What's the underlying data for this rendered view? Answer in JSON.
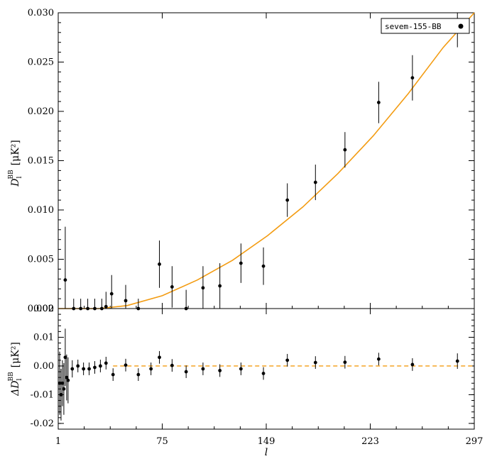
{
  "colors": {
    "model_line": "#F39C12",
    "points": "#000000",
    "background": "#FFFFFF"
  },
  "legend": {
    "label": "sevem-155-BB",
    "placement": "top-right"
  },
  "x_axis": {
    "label": "l",
    "range": [
      1,
      297
    ],
    "ticks": [
      1,
      75,
      149,
      223,
      297
    ]
  },
  "chart_data": [
    {
      "type": "scatter",
      "panel": "top",
      "ylabel_main": "D",
      "ylabel_sub": "l",
      "ylabel_sup": "BB",
      "ylabel_unit": "[μK²]",
      "ylim": [
        0.0,
        0.03
      ],
      "yticks": [
        "0.000",
        "0.005",
        "0.010",
        "0.015",
        "0.020",
        "0.025",
        "0.030"
      ],
      "series": [
        {
          "name": "sevem-155-BB",
          "x": [
            6,
            12,
            17,
            22,
            27,
            32,
            35,
            39,
            49,
            58,
            73,
            82,
            92,
            104,
            116,
            131,
            147,
            164,
            184,
            205,
            229,
            253,
            285
          ],
          "y": [
            0.0029,
            0.0,
            0.0,
            0.0,
            0.0,
            0.0,
            0.0002,
            0.0015,
            0.0008,
            0.0,
            0.0045,
            0.0022,
            0.0,
            0.0021,
            0.0023,
            0.0046,
            0.0043,
            0.011,
            0.0128,
            0.0161,
            0.0209,
            0.0234,
            0.0292
          ],
          "err": [
            0.0054,
            0.001,
            0.001,
            0.001,
            0.001,
            0.001,
            0.0015,
            0.0019,
            0.0016,
            0.001,
            0.0024,
            0.0021,
            0.0019,
            0.0022,
            0.0023,
            0.002,
            0.0019,
            0.0017,
            0.0018,
            0.0018,
            0.0021,
            0.0023,
            0.0027
          ]
        },
        {
          "name": "model",
          "x": [
            1,
            30,
            50,
            75,
            100,
            125,
            150,
            175,
            200,
            225,
            250,
            275,
            297
          ],
          "y": [
            0.0,
            0.0,
            0.0003,
            0.0013,
            0.0029,
            0.0049,
            0.0074,
            0.0103,
            0.0137,
            0.0175,
            0.0218,
            0.0265,
            0.03
          ]
        }
      ]
    },
    {
      "type": "scatter",
      "panel": "bottom",
      "ylabel_main": "ΔD",
      "ylabel_sub": "l",
      "ylabel_sup": "BB",
      "ylabel_unit": "[μK²]",
      "ylim": [
        -0.022,
        0.02
      ],
      "yticks": [
        "-0.02",
        "-0.01",
        "0.00",
        "0.01",
        "0.02"
      ],
      "series": [
        {
          "name": "residual",
          "x": [
            2,
            3,
            4,
            5,
            6,
            7,
            8,
            11,
            15,
            19,
            23,
            27,
            31,
            35,
            40,
            49,
            58,
            67,
            73,
            82,
            92,
            104,
            116,
            131,
            147,
            164,
            184,
            205,
            229,
            253,
            285
          ],
          "y": [
            -0.006,
            -0.01,
            -0.006,
            -0.008,
            0.003,
            -0.004,
            -0.005,
            -0.001,
            0.0,
            -0.001,
            -0.001,
            -0.0005,
            0.0,
            0.001,
            -0.003,
            0.0003,
            -0.003,
            -0.001,
            0.003,
            0.0002,
            -0.002,
            -0.001,
            -0.0016,
            -0.001,
            -0.0026,
            0.002,
            0.0012,
            0.0013,
            0.0024,
            0.0005,
            0.0017
          ],
          "err": [
            0.011,
            0.009,
            0.008,
            0.009,
            0.01,
            0.008,
            0.008,
            0.003,
            0.0022,
            0.0022,
            0.0022,
            0.0022,
            0.0022,
            0.0022,
            0.0022,
            0.0022,
            0.0022,
            0.0022,
            0.0022,
            0.0022,
            0.0022,
            0.0022,
            0.0022,
            0.0022,
            0.0022,
            0.0022,
            0.0022,
            0.0022,
            0.0022,
            0.0022,
            0.0027
          ]
        },
        {
          "name": "zero-line",
          "x": [
            40,
            297
          ],
          "y": [
            0.0,
            0.0
          ]
        }
      ]
    }
  ]
}
